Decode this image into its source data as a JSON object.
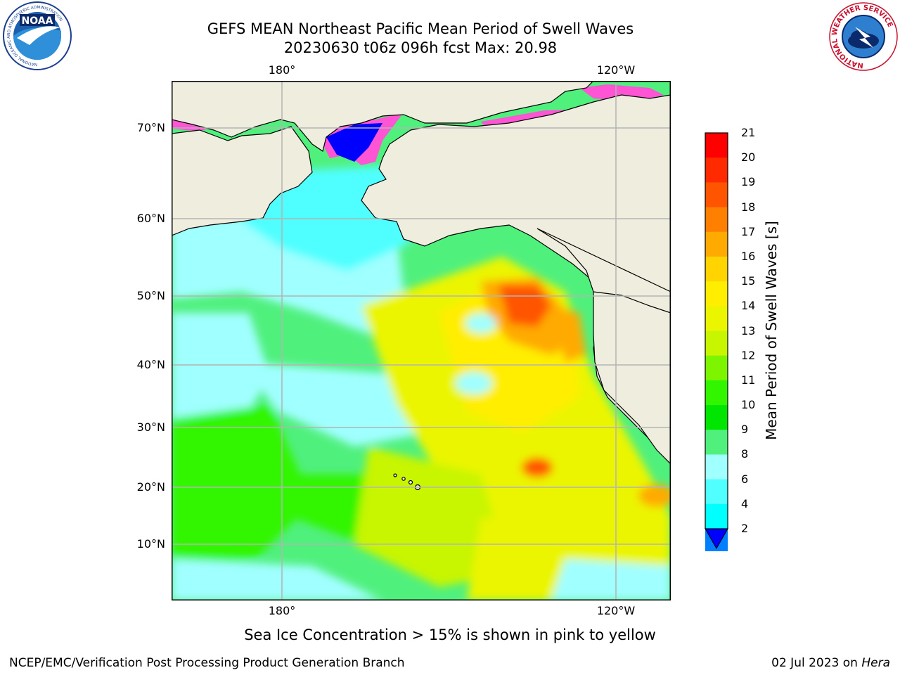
{
  "title": {
    "line1": "GEFS MEAN Northeast Pacific Mean Period of Swell Waves",
    "line2": "20230630 t06z 096h fcst   Max: 20.98"
  },
  "map": {
    "lon_labels": [
      "180°",
      "120°W"
    ],
    "lat_labels": [
      "70°N",
      "60°N",
      "50°N",
      "40°N",
      "30°N",
      "20°N",
      "10°N"
    ],
    "land_color": "#efedde",
    "grid_color": "#b4b4b4"
  },
  "colorbar": {
    "label": "Mean Period of Swell Waves [s]",
    "ticks": [
      "21",
      "20",
      "19",
      "18",
      "17",
      "16",
      "15",
      "14",
      "13",
      "12",
      "11",
      "10",
      "9",
      "8",
      "6",
      "4",
      "2"
    ],
    "colors": [
      "#ff0000",
      "#ff2a00",
      "#ff5500",
      "#ff8000",
      "#ffaa00",
      "#ffd400",
      "#ffee00",
      "#ebf500",
      "#c8f500",
      "#7df500",
      "#32f500",
      "#00e600",
      "#50f07d",
      "#a0ffff",
      "#50ffff",
      "#00ffff",
      "#0080ff"
    ],
    "extend_color": "#0000ff"
  },
  "logos": {
    "noaa_text": "NOAA",
    "noaa_ring": "NATIONAL OCEANIC AND ATMOSPHERIC ADMINISTRATION",
    "nws_ring": "NATIONAL WEATHER SERVICE"
  },
  "note": "Sea Ice Concentration > 15% is shown in pink to yellow",
  "footer": {
    "left": "NCEP/EMC/Verification Post Processing Product Generation Branch",
    "right_prefix": "02 Jul 2023 on",
    "right_host": "Hera"
  }
}
